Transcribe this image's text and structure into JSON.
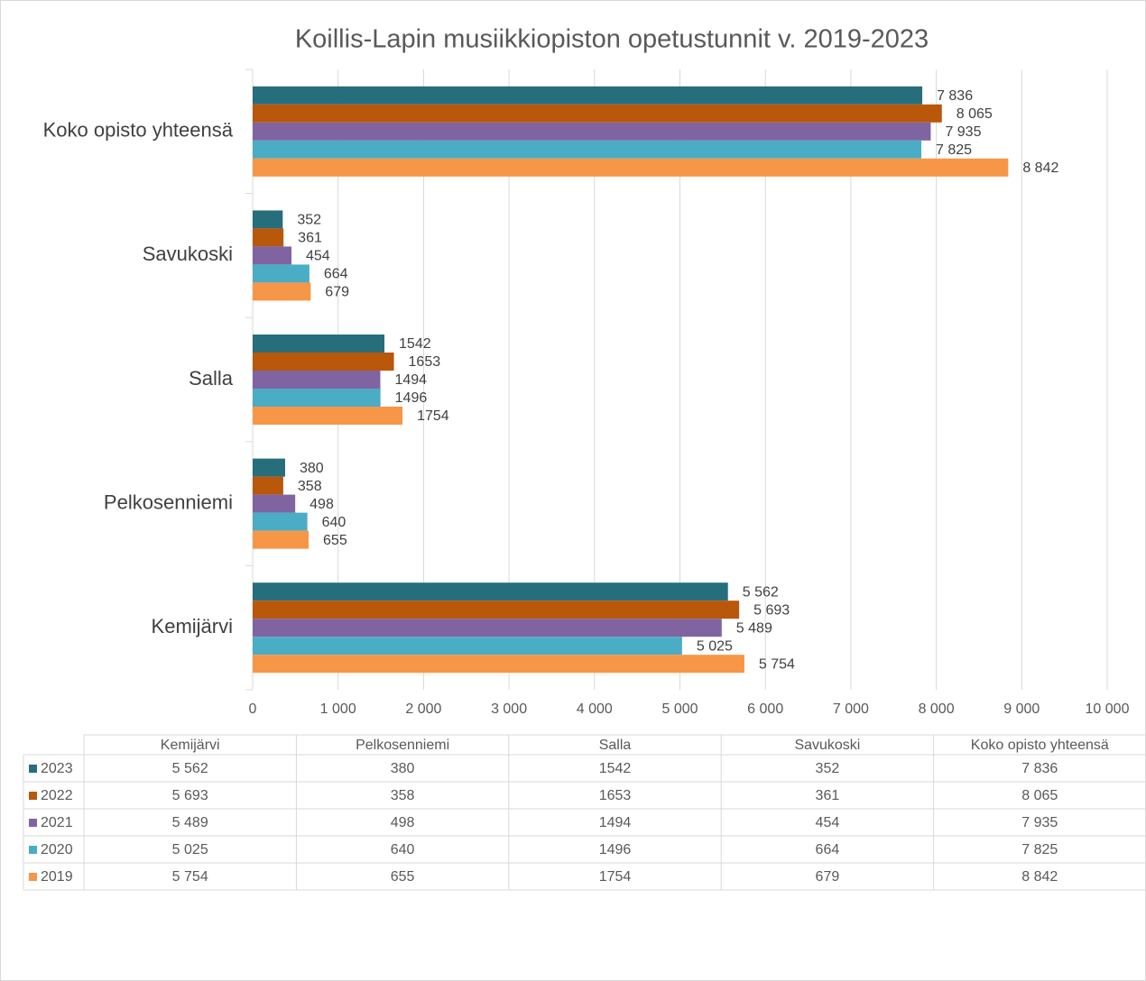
{
  "chart_data": {
    "type": "hbar",
    "title": "Koillis-Lapin musiikkiopiston opetustunnit v. 2019-2023",
    "categories": [
      "Kemijärvi",
      "Pelkosenniemi",
      "Salla",
      "Savukoski",
      "Koko opisto yhteensä"
    ],
    "series": [
      {
        "name": "2023",
        "color": "#276e7c",
        "values": [
          5562,
          380,
          1542,
          352,
          7836
        ],
        "value_labels": [
          "5 562",
          "380",
          "1542",
          "352",
          "7 836"
        ]
      },
      {
        "name": "2022",
        "color": "#b9570b",
        "values": [
          5693,
          358,
          1653,
          361,
          8065
        ],
        "value_labels": [
          "5 693",
          "358",
          "1653",
          "361",
          "8 065"
        ]
      },
      {
        "name": "2021",
        "color": "#8064a2",
        "values": [
          5489,
          498,
          1494,
          454,
          7935
        ],
        "value_labels": [
          "5 489",
          "498",
          "1494",
          "454",
          "7 935"
        ]
      },
      {
        "name": "2020",
        "color": "#4bacc6",
        "values": [
          5025,
          640,
          1496,
          664,
          7825
        ],
        "value_labels": [
          "5 025",
          "640",
          "1496",
          "664",
          "7 825"
        ]
      },
      {
        "name": "2019",
        "color": "#f79646",
        "values": [
          5754,
          655,
          1754,
          679,
          8842
        ],
        "value_labels": [
          "5 754",
          "655",
          "1754",
          "679",
          "8 842"
        ]
      }
    ],
    "xlim": [
      0,
      10000
    ],
    "xticks": [
      0,
      {
        "value": 1000,
        "label": "1 000"
      },
      {
        "value": 2000,
        "label": "2 000"
      },
      {
        "value": 3000,
        "label": "3 000"
      },
      {
        "value": 4000,
        "label": "4 000"
      },
      {
        "value": 5000,
        "label": "5 000"
      },
      {
        "value": 6000,
        "label": "6 000"
      },
      {
        "value": 7000,
        "label": "7 000"
      },
      {
        "value": 8000,
        "label": "8 000"
      },
      {
        "value": 9000,
        "label": "9 000"
      },
      {
        "value": 10000,
        "label": "10 000"
      }
    ],
    "grid": true,
    "data_table": true
  }
}
